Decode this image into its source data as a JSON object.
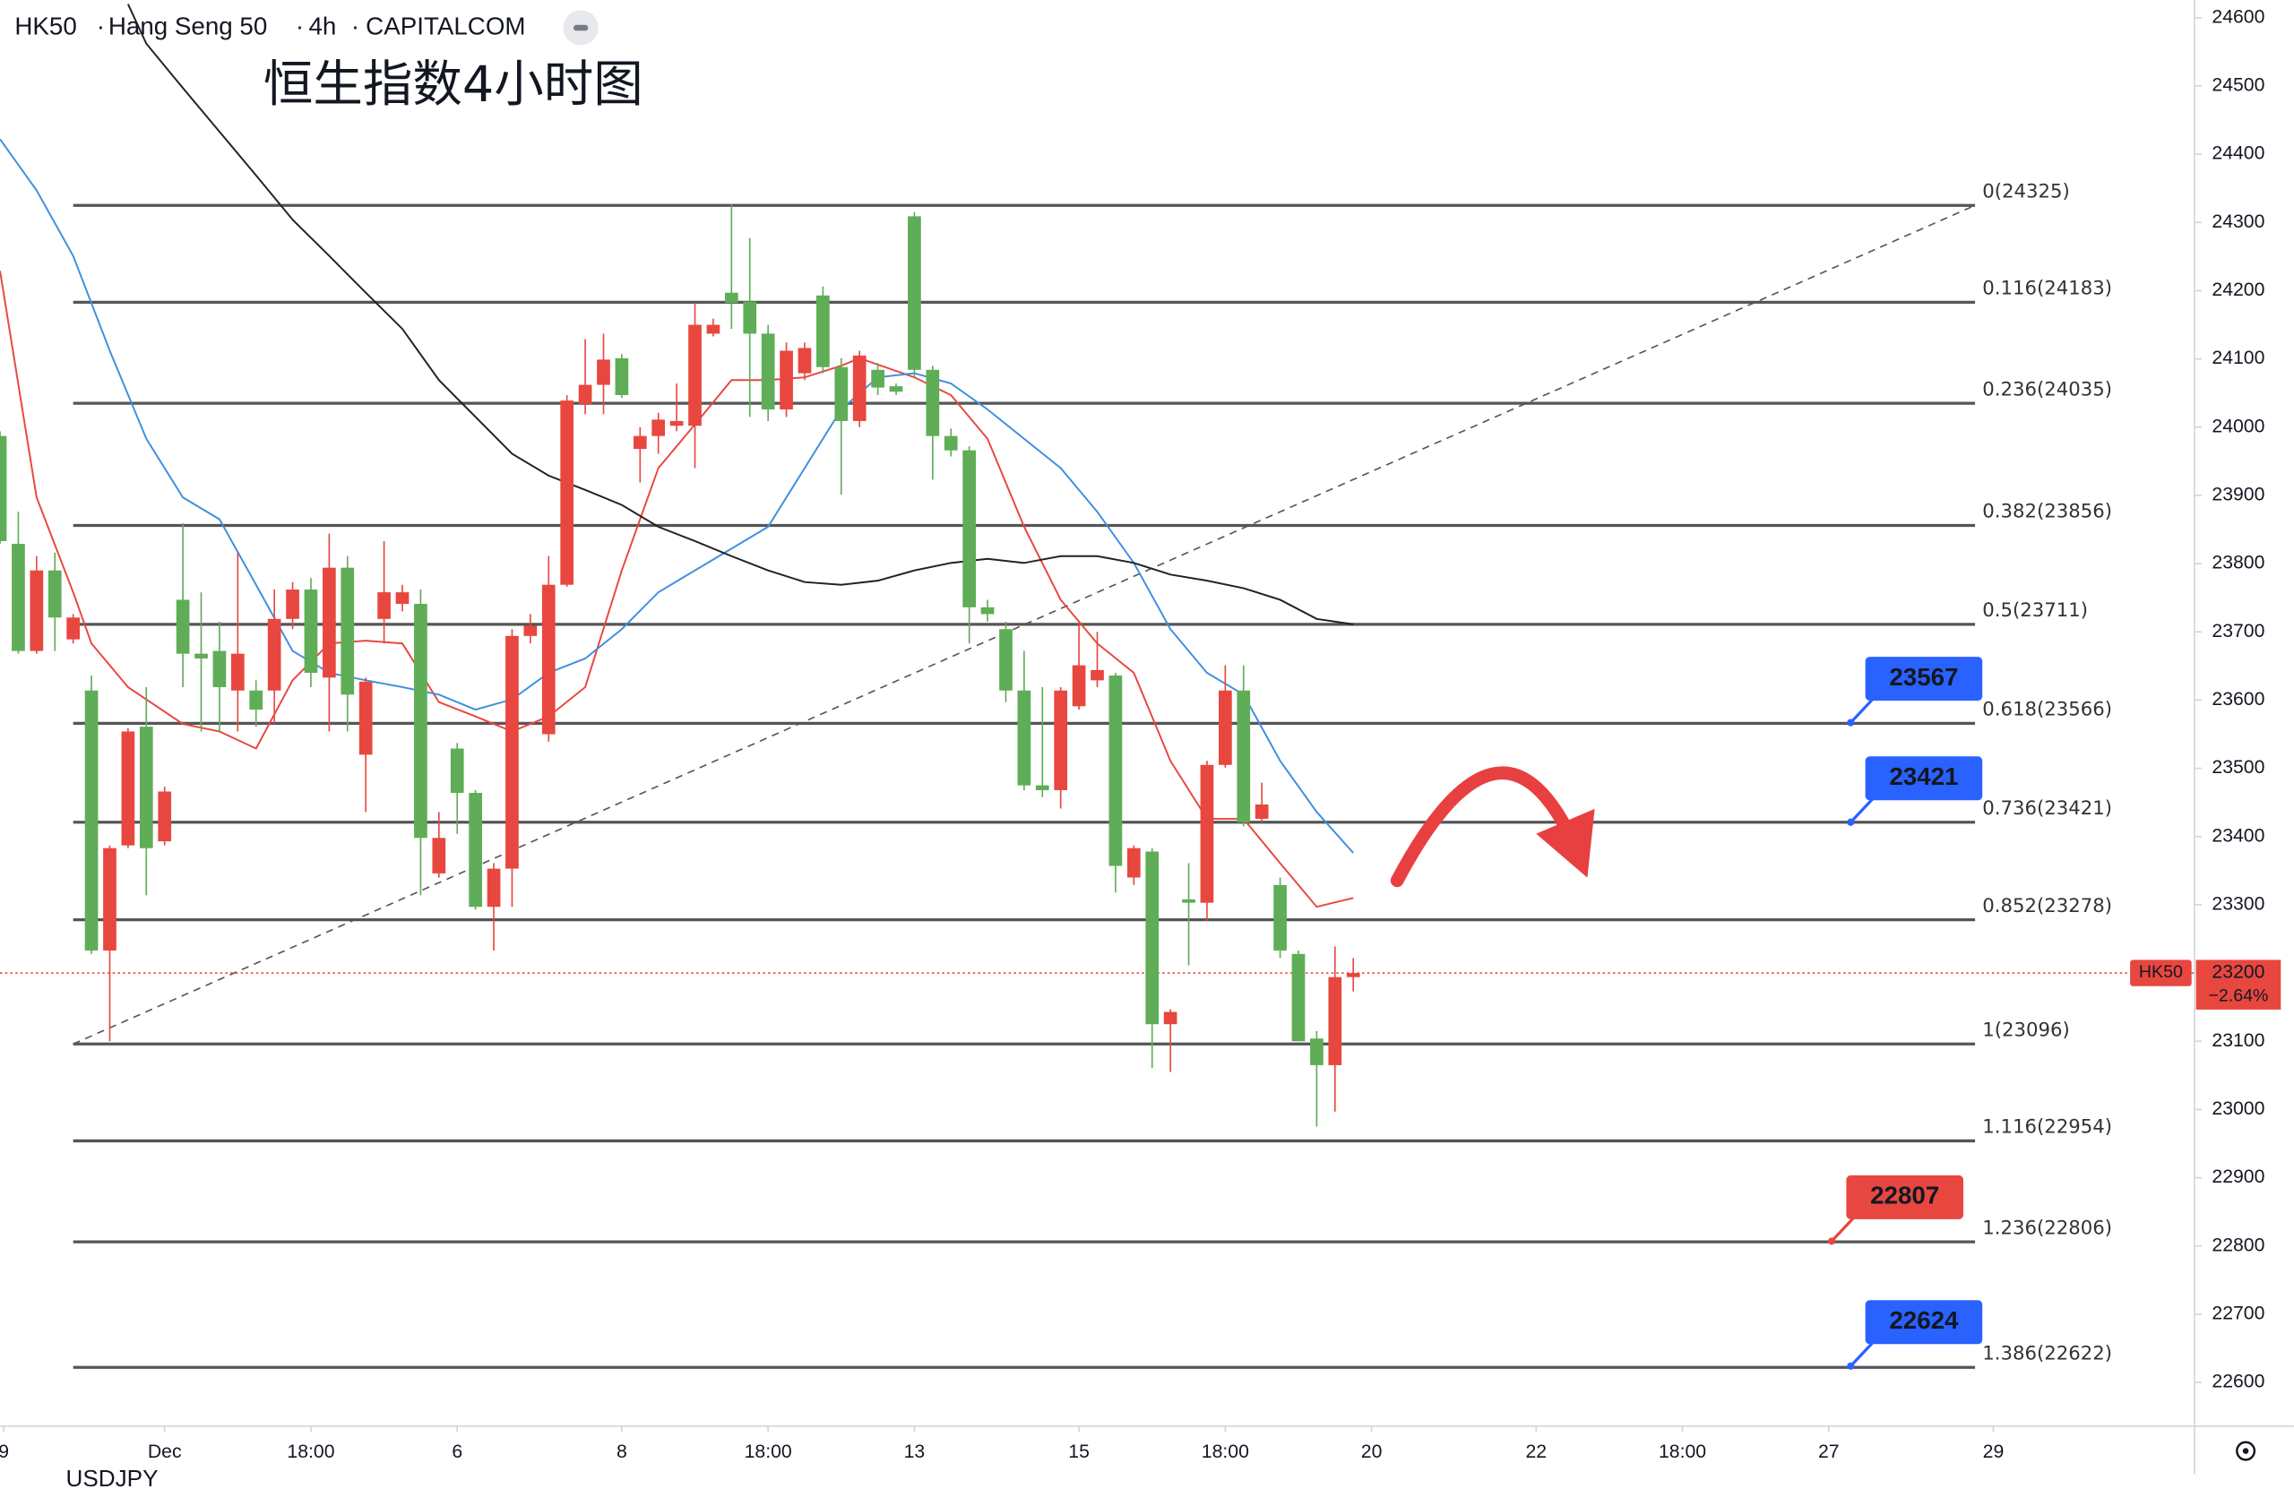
{
  "header": {
    "symbol": "HK50",
    "name": "Hang Seng 50",
    "interval": "4h",
    "source": "CAPITALCOM",
    "watermark": "USDJPY"
  },
  "chart_data": {
    "type": "candlestick",
    "title": "恒生指数4小时图",
    "up_color": "#e8473f",
    "down_color": "#5fad56",
    "xlim": [
      0,
      120
    ],
    "ylim": [
      22536,
      24626
    ],
    "yticks": [
      22600,
      22700,
      22800,
      22900,
      23000,
      23100,
      23200,
      23300,
      23400,
      23500,
      23600,
      23700,
      23800,
      23900,
      24000,
      24100,
      24200,
      24300,
      24400,
      24500,
      24600
    ],
    "xticks": [
      {
        "value": 0.2,
        "label": "9"
      },
      {
        "value": 9,
        "label": "Dec"
      },
      {
        "value": 17,
        "label": "18:00"
      },
      {
        "value": 25,
        "label": "6"
      },
      {
        "value": 34,
        "label": "8"
      },
      {
        "value": 42,
        "label": "18:00"
      },
      {
        "value": 50,
        "label": "13"
      },
      {
        "value": 59,
        "label": "15"
      },
      {
        "value": 67,
        "label": "18:00"
      },
      {
        "value": 75,
        "label": "20"
      },
      {
        "value": 84,
        "label": "22"
      },
      {
        "value": 92,
        "label": "18:00"
      },
      {
        "value": 100,
        "label": "27"
      },
      {
        "value": 109,
        "label": "29"
      }
    ],
    "x": [
      0,
      1,
      2,
      3,
      4,
      5,
      6,
      7,
      8,
      9,
      10,
      11,
      12,
      13,
      14,
      15,
      16,
      17,
      18,
      19,
      20,
      21,
      22,
      23,
      24,
      25,
      26,
      27,
      28,
      29,
      30,
      31,
      32,
      33,
      34,
      35,
      36,
      37,
      38,
      39,
      40,
      41,
      42,
      43,
      44,
      45,
      46,
      47,
      48,
      49,
      50,
      51,
      52,
      53,
      54,
      55,
      56,
      57,
      58,
      59,
      60,
      61,
      62,
      63,
      64,
      65,
      66,
      67,
      68,
      69,
      70,
      71,
      72,
      73,
      74
    ],
    "open": [
      23987,
      23829,
      23672,
      23790,
      23689,
      23614,
      23233,
      23387,
      23561,
      23393,
      23747,
      23668,
      23672,
      23614,
      23614,
      23614,
      23719,
      23762,
      23633,
      23794,
      23520,
      23719,
      23741,
      23741,
      23346,
      23529,
      23464,
      23297,
      23353,
      23694,
      23550,
      23769,
      24034,
      24062,
      24101,
      23968,
      23987,
      24002,
      24002,
      24137,
      24197,
      24184,
      24137,
      24026,
      24079,
      24193,
      24088,
      24009,
      24084,
      24060,
      24309,
      24084,
      23987,
      23966,
      23736,
      23704,
      23614,
      23475,
      23468,
      23591,
      23629,
      23636,
      23340,
      23378,
      23125,
      23308,
      23303,
      23505,
      23614,
      23426,
      23329,
      23228,
      23104,
      23065,
      23194
    ],
    "high": [
      23994,
      23876,
      23811,
      23816,
      23726,
      23636,
      23387,
      23559,
      23619,
      23473,
      23859,
      23758,
      23715,
      23816,
      23629,
      23762,
      23773,
      23779,
      23844,
      23811,
      23633,
      23833,
      23769,
      23762,
      23436,
      23537,
      23468,
      23361,
      23704,
      23726,
      23811,
      24047,
      24129,
      24137,
      24107,
      24000,
      24021,
      24064,
      24182,
      24159,
      24326,
      24277,
      24150,
      24124,
      24124,
      24206,
      24101,
      24112,
      24094,
      24064,
      24315,
      24090,
      23998,
      23972,
      23747,
      23715,
      23672,
      23619,
      23619,
      23715,
      23700,
      23640,
      23387,
      23383,
      23147,
      23361,
      23511,
      23651,
      23651,
      23479,
      23340,
      23233,
      23115,
      23239,
      23222
    ],
    "low": [
      23829,
      23668,
      23668,
      23672,
      23683,
      23228,
      23100,
      23383,
      23314,
      23387,
      23619,
      23554,
      23554,
      23554,
      23561,
      23565,
      23704,
      23619,
      23554,
      23554,
      23436,
      23683,
      23730,
      23314,
      23340,
      23404,
      23293,
      23233,
      23297,
      23683,
      23539,
      23766,
      24019,
      24019,
      24043,
      23919,
      23961,
      23994,
      23940,
      24133,
      24144,
      24015,
      24009,
      24015,
      24069,
      24079,
      23901,
      24000,
      24047,
      24047,
      24073,
      23923,
      23957,
      23683,
      23715,
      23597,
      23468,
      23458,
      23441,
      23586,
      23619,
      23318,
      23329,
      23061,
      23055,
      23211,
      23276,
      23501,
      23415,
      23421,
      23222,
      23100,
      22975,
      22997,
      23173
    ],
    "close": [
      23833,
      23672,
      23790,
      23721,
      23721,
      23233,
      23383,
      23554,
      23383,
      23466,
      23668,
      23661,
      23619,
      23668,
      23586,
      23719,
      23762,
      23640,
      23794,
      23608,
      23627,
      23758,
      23758,
      23398,
      23398,
      23464,
      23297,
      23353,
      23694,
      23709,
      23769,
      24039,
      24062,
      24099,
      24047,
      23987,
      24011,
      24009,
      24150,
      24150,
      24182,
      24137,
      24026,
      24112,
      24116,
      24088,
      24009,
      24105,
      24058,
      24052,
      24084,
      23987,
      23966,
      23736,
      23726,
      23614,
      23475,
      23468,
      23614,
      23651,
      23644,
      23357,
      23383,
      23125,
      23143,
      23303,
      23505,
      23614,
      23421,
      23447,
      23233,
      23100,
      23065,
      23194,
      23200
    ],
    "moving_averages": [
      {
        "color": "#e8473f",
        "x": [
          0,
          2,
          4,
          5,
          7,
          10,
          12,
          14,
          16,
          18,
          20,
          22,
          24,
          26,
          28,
          30,
          32,
          34,
          36,
          38,
          40,
          42,
          44,
          46,
          47,
          50,
          52,
          54,
          56,
          58,
          60,
          62,
          64,
          66,
          68,
          70,
          72,
          74
        ],
        "values": [
          24229,
          23897,
          23758,
          23683,
          23619,
          23565,
          23554,
          23529,
          23629,
          23683,
          23687,
          23683,
          23597,
          23576,
          23554,
          23576,
          23619,
          23790,
          23940,
          24004,
          24069,
          24069,
          24073,
          24090,
          24101,
          24073,
          24047,
          23983,
          23854,
          23747,
          23683,
          23640,
          23511,
          23426,
          23426,
          23361,
          23297,
          23310
        ]
      },
      {
        "color": "#3d8fe0",
        "x": [
          0,
          2,
          4,
          6,
          8,
          10,
          12,
          14,
          16,
          18,
          20,
          22,
          24,
          26,
          28,
          30,
          32,
          34,
          36,
          38,
          40,
          42,
          44,
          46,
          48,
          50,
          52,
          54,
          56,
          58,
          60,
          62,
          64,
          66,
          68,
          70,
          72,
          74
        ],
        "values": [
          24422,
          24347,
          24251,
          24112,
          23983,
          23897,
          23865,
          23769,
          23672,
          23640,
          23629,
          23619,
          23608,
          23586,
          23601,
          23640,
          23661,
          23704,
          23758,
          23790,
          23822,
          23854,
          23940,
          24026,
          24073,
          24079,
          24064,
          24026,
          23983,
          23940,
          23876,
          23801,
          23704,
          23640,
          23608,
          23511,
          23436,
          23376
        ]
      },
      {
        "color": "#222222",
        "x": [
          7,
          8,
          10,
          12,
          14,
          16,
          18,
          20,
          22,
          24,
          26,
          28,
          30,
          32,
          34,
          36,
          38,
          40,
          42,
          44,
          46,
          48,
          50,
          52,
          54,
          56,
          58,
          60,
          62,
          64,
          66,
          68,
          70,
          72,
          74
        ],
        "values": [
          24620,
          24562,
          24497,
          24433,
          24369,
          24304,
          24251,
          24197,
          24144,
          24069,
          24015,
          23961,
          23929,
          23908,
          23886,
          23854,
          23833,
          23811,
          23790,
          23773,
          23769,
          23775,
          23790,
          23801,
          23807,
          23801,
          23811,
          23811,
          23801,
          23784,
          23775,
          23764,
          23747,
          23719,
          23711
        ]
      }
    ],
    "trendline": {
      "x": [
        4,
        108
      ],
      "values": [
        23096,
        24325
      ]
    },
    "fib_levels": [
      {
        "value": 24325,
        "label": "0(24325)"
      },
      {
        "value": 24183,
        "label": "0.116(24183)"
      },
      {
        "value": 24035,
        "label": "0.236(24035)"
      },
      {
        "value": 23856,
        "label": "0.382(23856)"
      },
      {
        "value": 23711,
        "label": "0.5(23711)"
      },
      {
        "value": 23566,
        "label": "0.618(23566)"
      },
      {
        "value": 23421,
        "label": "0.736(23421)"
      },
      {
        "value": 23278,
        "label": "0.852(23278)"
      },
      {
        "value": 23096,
        "label": "1(23096)"
      },
      {
        "value": 22954,
        "label": "1.116(22954)"
      },
      {
        "value": 22806,
        "label": "1.236(22806)"
      },
      {
        "value": 22622,
        "label": "1.386(22622)"
      }
    ],
    "targets": [
      {
        "value": 23567,
        "color": "#2962ff"
      },
      {
        "value": 23421,
        "color": "#2962ff"
      },
      {
        "value": 22807,
        "color": "#e8473f"
      },
      {
        "value": 22624,
        "color": "#2962ff"
      }
    ],
    "last": {
      "symbol": "HK50",
      "value": 23200,
      "change": "−2.64%",
      "color": "#e8473f"
    }
  }
}
